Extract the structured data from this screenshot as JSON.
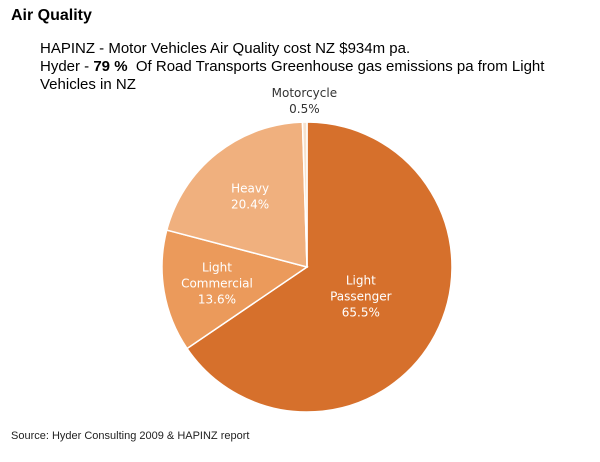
{
  "page": {
    "title": "Air Quality",
    "line1": "HAPINZ - Motor Vehicles Air Quality cost NZ $934m pa.",
    "line2_prefix": "Hyder - ",
    "line2_bold": "79 %",
    "line2_rest": "  Of Road Transports Greenhouse gas emissions pa from Light",
    "line3": "Vehicles in NZ",
    "source": "Source: Hyder Consulting 2009 & HAPINZ report"
  },
  "chart_data": {
    "type": "pie",
    "title": "",
    "slices": [
      {
        "label": "Light Passenger",
        "lines": [
          "Light",
          "Passenger"
        ],
        "value": 65.5,
        "value_label": "65.5%",
        "color": "#D6702C"
      },
      {
        "label": "Light Commercial",
        "lines": [
          "Light",
          "Commercial"
        ],
        "value": 13.6,
        "value_label": "13.6%",
        "color": "#EB9A5B"
      },
      {
        "label": "Heavy",
        "lines": [
          "Heavy"
        ],
        "value": 20.4,
        "value_label": "20.4%",
        "color": "#F0B07E"
      },
      {
        "label": "Motorcycle",
        "lines": [
          "Motorcycle"
        ],
        "value": 0.5,
        "value_label": "0.5%",
        "color": "#F7E1CC"
      }
    ],
    "label_color_inside": "#ffffff",
    "label_color_outside": "#333333"
  }
}
